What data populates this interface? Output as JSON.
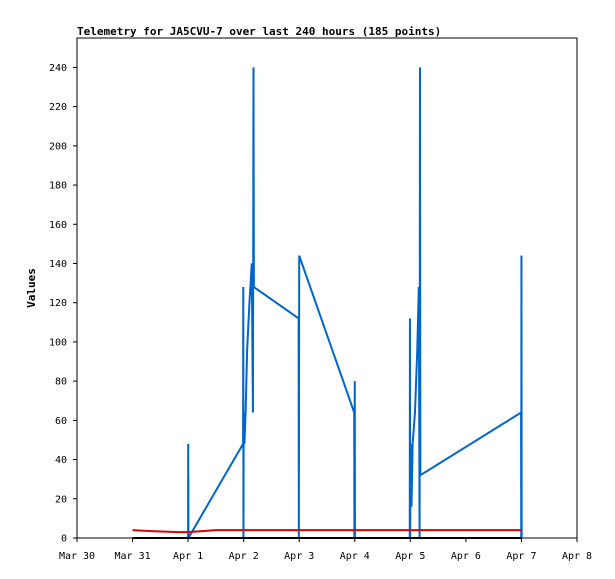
{
  "chart_data": {
    "type": "line",
    "title": "Telemetry for JA5CVU-7 over last 240 hours (185 points)",
    "ylabel": "Values",
    "xlabel": "",
    "x_ticks": [
      "Mar 30",
      "Mar 31",
      "Apr 1",
      "Apr 2",
      "Apr 3",
      "Apr 4",
      "Apr 5",
      "Apr 6",
      "Apr 7",
      "Apr 8"
    ],
    "xlim": [
      "Mar 30",
      "Apr 8"
    ],
    "y_ticks": [
      0,
      20,
      40,
      60,
      80,
      100,
      120,
      140,
      160,
      180,
      200,
      220,
      240
    ],
    "ylim": [
      0,
      255
    ],
    "grid": false,
    "series": [
      {
        "color": "#0066cc",
        "points": [
          [
            "Apr 1 00:00",
            0
          ],
          [
            "Apr 1 00:02",
            48
          ],
          [
            "Apr 1 00:04",
            0
          ],
          [
            "Apr 1 00:06",
            32
          ],
          [
            "Apr 1 00:08",
            0
          ],
          [
            "Apr 1 23:45",
            48
          ],
          [
            "Apr 1 23:50",
            128
          ],
          [
            "Apr 1 23:55",
            0
          ],
          [
            "Apr 2 00:00",
            64
          ],
          [
            "Apr 2 00:20",
            48
          ],
          [
            "Apr 2 00:50",
            64
          ],
          [
            "Apr 2 01:30",
            96
          ],
          [
            "Apr 2 02:30",
            120
          ],
          [
            "Apr 2 03:30",
            140
          ],
          [
            "Apr 2 04:00",
            64
          ],
          [
            "Apr 2 04:15",
            240
          ],
          [
            "Apr 2 04:25",
            128
          ],
          [
            "Apr 2 23:45",
            112
          ],
          [
            "Apr 2 23:50",
            0
          ],
          [
            "Apr 3 00:00",
            144
          ],
          [
            "Apr 3 23:45",
            64
          ],
          [
            "Apr 3 23:50",
            0
          ],
          [
            "Apr 4 00:00",
            80
          ],
          [
            "Apr 4 00:05",
            0
          ],
          [
            "Apr 4 23:45",
            0
          ],
          [
            "Apr 4 23:50",
            112
          ],
          [
            "Apr 4 23:55",
            0
          ],
          [
            "Apr 5 00:10",
            48
          ],
          [
            "Apr 5 00:30",
            16
          ],
          [
            "Apr 5 01:00",
            48
          ],
          [
            "Apr 5 02:00",
            64
          ],
          [
            "Apr 5 03:00",
            96
          ],
          [
            "Apr 5 03:40",
            128
          ],
          [
            "Apr 5 04:00",
            0
          ],
          [
            "Apr 5 04:10",
            240
          ],
          [
            "Apr 5 04:20",
            32
          ],
          [
            "Apr 6 23:50",
            64
          ],
          [
            "Apr 6 23:55",
            0
          ],
          [
            "Apr 7 00:00",
            144
          ],
          [
            "Apr 7 00:05",
            0
          ]
        ]
      },
      {
        "color": "#dd0000",
        "points": [
          [
            "Mar 31 00:00",
            4
          ],
          [
            "Mar 31 08:00",
            3.5
          ],
          [
            "Mar 31 20:00",
            3
          ],
          [
            "Apr 1 00:00",
            3
          ],
          [
            "Apr 1 12:00",
            4
          ],
          [
            "Apr 2 00:00",
            4
          ],
          [
            "Apr 3 00:00",
            4
          ],
          [
            "Apr 4 00:00",
            4
          ],
          [
            "Apr 5 00:00",
            4
          ],
          [
            "Apr 6 00:00",
            4
          ],
          [
            "Apr 7 00:00",
            4
          ]
        ]
      },
      {
        "color": "#000000",
        "points": [
          [
            "Mar 31 00:00",
            0
          ],
          [
            "Apr 7 00:00",
            0
          ]
        ]
      }
    ]
  }
}
